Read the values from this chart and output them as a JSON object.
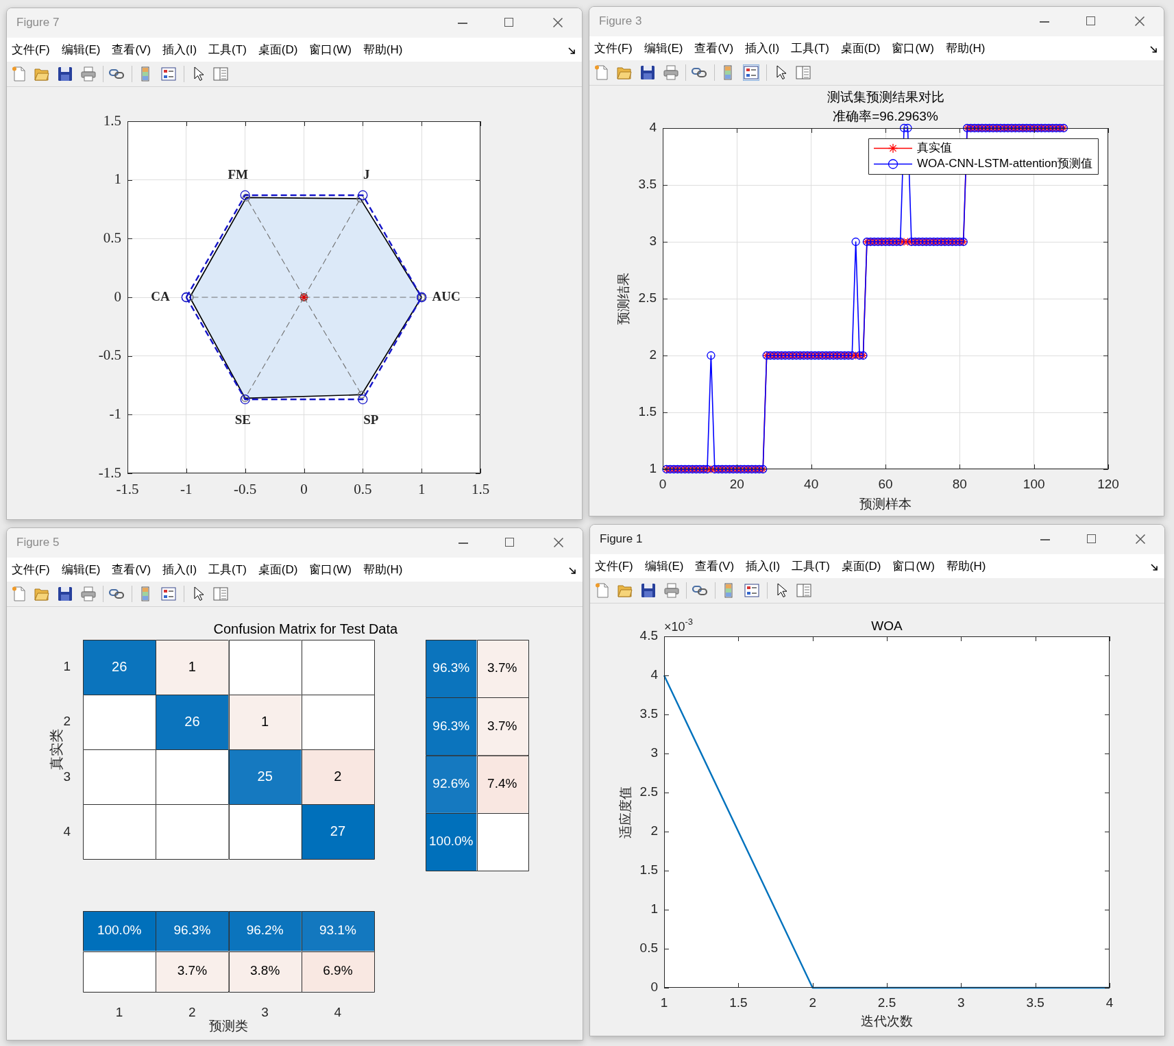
{
  "chart_data": [
    {
      "type": "line",
      "xlim": [
        -1.5,
        1.5
      ],
      "ylim": [
        -1.5,
        1.5
      ],
      "xticks": [
        -1.5,
        -1,
        -0.5,
        0,
        0.5,
        1,
        1.5
      ],
      "yticks": [
        -1.5,
        -1,
        -0.5,
        0,
        0.5,
        1,
        1.5
      ],
      "grid": true,
      "series": [
        {
          "type": "area",
          "color": "#dce9f8",
          "x": [
            1,
            0.48,
            -0.49,
            -0.97,
            -0.5,
            0.49,
            1
          ],
          "values": [
            0,
            0.84,
            0.85,
            0,
            -0.86,
            -0.83,
            0
          ]
        },
        {
          "type": "line",
          "color": "#707070",
          "line_style": "dashed",
          "marker": "circle",
          "x": [
            0,
            1,
            null,
            0,
            0.48,
            null,
            0,
            -0.49,
            null,
            0,
            -0.97,
            null,
            0,
            -0.5,
            null,
            0,
            0.49
          ],
          "values": [
            0,
            0,
            null,
            0,
            0.84,
            null,
            0,
            0.85,
            null,
            0,
            0,
            null,
            0,
            -0.86,
            null,
            0,
            -0.83
          ]
        },
        {
          "type": "line",
          "color": "#1515c8",
          "line_style": "dashed",
          "marker": "circle",
          "x": [
            -1,
            -0.5,
            0.5,
            1
          ],
          "values": [
            0,
            0.87,
            0.87,
            0
          ]
        },
        {
          "type": "line",
          "color": "#1515c8",
          "line_style": "dashed",
          "marker": "circle",
          "x": [
            -1,
            -0.5,
            0.5,
            1
          ],
          "values": [
            0,
            -0.87,
            -0.87,
            0
          ]
        },
        {
          "type": "scatter",
          "color": "#e00000",
          "marker": "cross",
          "x": [
            0
          ],
          "values": [
            0
          ]
        }
      ],
      "annotations": [
        "Figure 7",
        "文件(F)",
        "编辑(E)",
        "查看(V)",
        "插入(I)",
        "工具(T)",
        "桌面(D)",
        "窗口(W)",
        "帮助(H)",
        "AUC",
        "J",
        "FM",
        "CA",
        "SE",
        "SP"
      ]
    },
    {
      "type": "line",
      "title": "测试集预测结果对比",
      "subtitle": "准确率=96.2963%",
      "xlabel": "预测样本",
      "ylabel": "预测结果",
      "xlim": [
        0,
        120
      ],
      "xticks": [
        0,
        20,
        40,
        60,
        80,
        100,
        120
      ],
      "ylim": [
        1,
        4
      ],
      "yticks": [
        1,
        1.5,
        2,
        2.5,
        3,
        3.5,
        4
      ],
      "grid": true,
      "legend": "top right",
      "x": [
        1,
        2,
        3,
        4,
        5,
        6,
        7,
        8,
        9,
        10,
        11,
        12,
        13,
        14,
        15,
        16,
        17,
        18,
        19,
        20,
        21,
        22,
        23,
        24,
        25,
        26,
        27,
        28,
        29,
        30,
        31,
        32,
        33,
        34,
        35,
        36,
        37,
        38,
        39,
        40,
        41,
        42,
        43,
        44,
        45,
        46,
        47,
        48,
        49,
        50,
        51,
        52,
        53,
        54,
        55,
        56,
        57,
        58,
        59,
        60,
        61,
        62,
        63,
        64,
        65,
        66,
        67,
        68,
        69,
        70,
        71,
        72,
        73,
        74,
        75,
        76,
        77,
        78,
        79,
        80,
        81,
        82,
        83,
        84,
        85,
        86,
        87,
        88,
        89,
        90,
        91,
        92,
        93,
        94,
        95,
        96,
        97,
        98,
        99,
        100,
        101,
        102,
        103,
        104,
        105,
        106,
        107,
        108
      ],
      "series": [
        {
          "name": "真实值",
          "color": "#ff0000",
          "marker": "cross",
          "values": [
            1,
            1,
            1,
            1,
            1,
            1,
            1,
            1,
            1,
            1,
            1,
            1,
            1,
            1,
            1,
            1,
            1,
            1,
            1,
            1,
            1,
            1,
            1,
            1,
            1,
            1,
            1,
            2,
            2,
            2,
            2,
            2,
            2,
            2,
            2,
            2,
            2,
            2,
            2,
            2,
            2,
            2,
            2,
            2,
            2,
            2,
            2,
            2,
            2,
            2,
            2,
            2,
            2,
            2,
            3,
            3,
            3,
            3,
            3,
            3,
            3,
            3,
            3,
            3,
            3,
            3,
            3,
            3,
            3,
            3,
            3,
            3,
            3,
            3,
            3,
            3,
            3,
            3,
            3,
            3,
            3,
            4,
            4,
            4,
            4,
            4,
            4,
            4,
            4,
            4,
            4,
            4,
            4,
            4,
            4,
            4,
            4,
            4,
            4,
            4,
            4,
            4,
            4,
            4,
            4,
            4,
            4,
            4
          ]
        },
        {
          "name": "WOA-CNN-LSTM-attention预测值",
          "color": "#0000ff",
          "marker": "circle",
          "values": [
            1,
            1,
            1,
            1,
            1,
            1,
            1,
            1,
            1,
            1,
            1,
            1,
            2,
            1,
            1,
            1,
            1,
            1,
            1,
            1,
            1,
            1,
            1,
            1,
            1,
            1,
            1,
            2,
            2,
            2,
            2,
            2,
            2,
            2,
            2,
            2,
            2,
            2,
            2,
            2,
            2,
            2,
            2,
            2,
            2,
            2,
            2,
            2,
            2,
            2,
            2,
            3,
            2,
            2,
            3,
            3,
            3,
            3,
            3,
            3,
            3,
            3,
            3,
            3,
            4,
            4,
            3,
            3,
            3,
            3,
            3,
            3,
            3,
            3,
            3,
            3,
            3,
            3,
            3,
            3,
            3,
            4,
            4,
            4,
            4,
            4,
            4,
            4,
            4,
            4,
            4,
            4,
            4,
            4,
            4,
            4,
            4,
            4,
            4,
            4,
            4,
            4,
            4,
            4,
            4,
            4,
            4,
            4
          ]
        }
      ],
      "annotations": [
        "Figure 3",
        "文件(F)",
        "编辑(E)",
        "查看(V)",
        "插入(I)",
        "工具(T)",
        "桌面(D)",
        "窗口(W)",
        "帮助(H)"
      ]
    },
    {
      "type": "heatmap",
      "title": "Confusion Matrix for Test Data",
      "ylabel": "真实类",
      "categories": [
        "1",
        "2",
        "3",
        "4"
      ],
      "y_categories": [
        "1",
        "2",
        "3",
        "4"
      ],
      "cells": [
        [
          26,
          1,
          null,
          null
        ],
        [
          null,
          26,
          1,
          null
        ],
        [
          null,
          null,
          25,
          2
        ],
        [
          null,
          null,
          null,
          27
        ]
      ],
      "colors": [
        [
          "#0b74bd",
          "#f9efeb",
          null,
          null
        ],
        [
          null,
          "#0b74bd",
          "#f9efeb",
          null
        ],
        [
          null,
          null,
          "#1579c0",
          "#f9e7e1"
        ],
        [
          null,
          null,
          null,
          "#0070bb"
        ]
      ],
      "data_labels": true,
      "tick_labels": "y",
      "annotations": [
        "Figure 5",
        "文件(F)",
        "编辑(E)",
        "查看(V)",
        "插入(I)",
        "工具(T)",
        "桌面(D)",
        "窗口(W)",
        "帮助(H)"
      ]
    },
    {
      "type": "heatmap",
      "categories": [
        null,
        null
      ],
      "y_categories": [
        "1",
        "2",
        "3",
        "4"
      ],
      "cells": [
        [
          96.3,
          3.7
        ],
        [
          96.3,
          3.7
        ],
        [
          92.6,
          7.4
        ],
        [
          100.0,
          null
        ]
      ],
      "cell_labels": [
        [
          "96.3%",
          "3.7%"
        ],
        [
          "96.3%",
          "3.7%"
        ],
        [
          "92.6%",
          "7.4%"
        ],
        [
          "100.0%",
          null
        ]
      ],
      "colors": [
        [
          "#0b74bd",
          "#f9efeb"
        ],
        [
          "#0b74bd",
          "#f9efeb"
        ],
        [
          "#1579c0",
          "#f9e7e1"
        ],
        [
          "#0070bb",
          null
        ]
      ],
      "tick_labels": false
    },
    {
      "type": "heatmap",
      "xlabel": "预测类",
      "categories": [
        "1",
        "2",
        "3",
        "4"
      ],
      "y_categories": [
        null,
        null
      ],
      "cells": [
        [
          100.0,
          96.3,
          96.2,
          93.1
        ],
        [
          null,
          3.7,
          3.8,
          6.9
        ]
      ],
      "cell_labels": [
        [
          "100.0%",
          "96.3%",
          "96.2%",
          "93.1%"
        ],
        [
          null,
          "3.7%",
          "3.8%",
          "6.9%"
        ]
      ],
      "colors": [
        [
          "#0070bb",
          "#0b74bd",
          "#0b74bd",
          "#1378bf"
        ],
        [
          null,
          "#f9efeb",
          "#f9eeea",
          "#f9e8e2"
        ]
      ],
      "tick_labels": "x"
    },
    {
      "type": "line",
      "title": "WOA",
      "xlabel": "迭代次数",
      "ylabel": "适应度值",
      "x": [
        1,
        2,
        3,
        4
      ],
      "values": [
        4,
        0,
        0,
        0
      ],
      "color": "#0072bd",
      "xlim": [
        1,
        4
      ],
      "xticks": [
        1,
        1.5,
        2,
        2.5,
        3,
        3.5,
        4
      ],
      "ylim": [
        0,
        4.5
      ],
      "yticks": [
        0,
        0.5,
        1,
        1.5,
        2,
        2.5,
        3,
        3.5,
        4,
        4.5
      ],
      "annotations": [
        "Figure 1",
        "文件(F)",
        "编辑(E)",
        "查看(V)",
        "插入(I)",
        "工具(T)",
        "桌面(D)",
        "窗口(W)",
        "帮助(H)",
        "×10$^{-3}$"
      ]
    }
  ]
}
